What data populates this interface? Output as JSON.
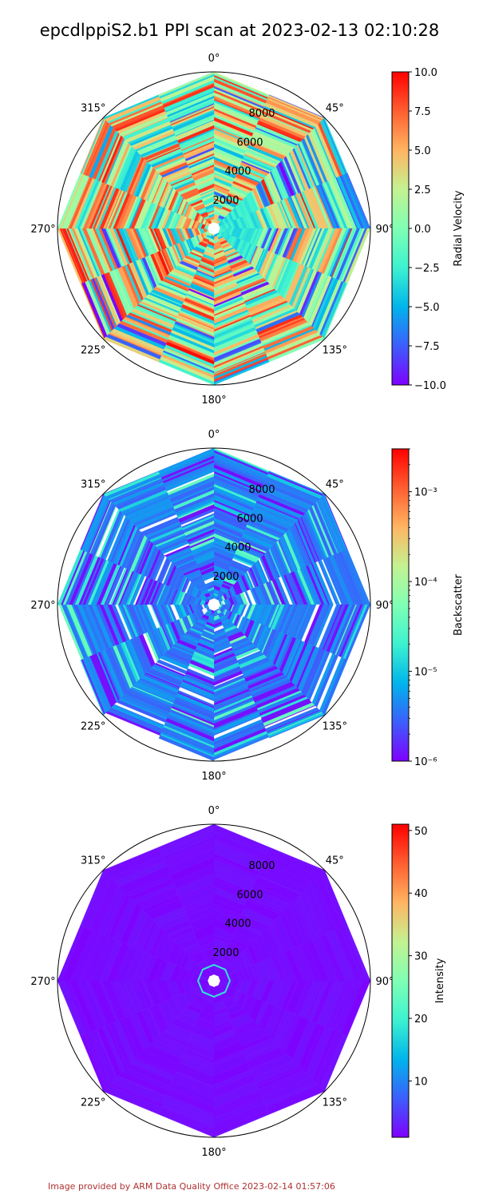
{
  "title": "epcdlppiS2.b1 PPI scan at 2023-02-13 02:10:28",
  "footer": "Image provided by ARM Data Quality Office 2023-02-14 01:57:06",
  "colors": {
    "background": "#ffffff",
    "footer_text": "#b03030",
    "colormap": [
      "#7f00ff",
      "#3c5efc",
      "#00b5eb",
      "#3df2d0",
      "#80ffb4",
      "#c4f291",
      "#ffb562",
      "#ff5e30",
      "#ff0000"
    ]
  },
  "chart_data": [
    {
      "type": "heatmap",
      "projection": "polar",
      "theta_direction": "clockwise",
      "theta_zero": "north",
      "theta_tick_labels": [
        "0°",
        "45°",
        "90°",
        "135°",
        "180°",
        "225°",
        "270°",
        "315°"
      ],
      "r_tick_labels": [
        "2000",
        "4000",
        "6000",
        "8000"
      ],
      "r_ticks": [
        2000,
        4000,
        6000,
        8000
      ],
      "r_range": [
        0,
        10000
      ],
      "colorbar_label": "Radial Velocity",
      "colorbar_scale": "linear",
      "clim": [
        -10,
        10
      ],
      "colorbar_ticks": [
        -10,
        -7.5,
        -5,
        -2.5,
        0,
        2.5,
        5,
        7.5,
        10
      ],
      "colorbar_tick_labels": [
        "−10.0",
        "−7.5",
        "−5.0",
        "−2.5",
        "0.0",
        "2.5",
        "5.0",
        "7.5",
        "10.0"
      ]
    },
    {
      "type": "heatmap",
      "projection": "polar",
      "theta_direction": "clockwise",
      "theta_zero": "north",
      "theta_tick_labels": [
        "0°",
        "45°",
        "90°",
        "135°",
        "180°",
        "225°",
        "270°",
        "315°"
      ],
      "r_tick_labels": [
        "2000",
        "4000",
        "6000",
        "8000"
      ],
      "r_ticks": [
        2000,
        4000,
        6000,
        8000
      ],
      "r_range": [
        0,
        10000
      ],
      "colorbar_label": "Backscatter",
      "colorbar_scale": "log",
      "clim": [
        1e-06,
        0.003
      ],
      "colorbar_ticks": [
        1e-06,
        1e-05,
        0.0001,
        0.001
      ],
      "colorbar_tick_labels": [
        "10⁻⁶",
        "10⁻⁵",
        "10⁻⁴",
        "10⁻³"
      ]
    },
    {
      "type": "heatmap",
      "projection": "polar",
      "theta_direction": "clockwise",
      "theta_zero": "north",
      "theta_tick_labels": [
        "0°",
        "45°",
        "90°",
        "135°",
        "180°",
        "225°",
        "270°",
        "315°"
      ],
      "r_tick_labels": [
        "2000",
        "4000",
        "6000",
        "8000"
      ],
      "r_ticks": [
        2000,
        4000,
        6000,
        8000
      ],
      "r_range": [
        0,
        10000
      ],
      "colorbar_label": "Intensity",
      "colorbar_scale": "linear",
      "clim": [
        1,
        51
      ],
      "colorbar_ticks": [
        10,
        20,
        30,
        40,
        50
      ],
      "colorbar_tick_labels": [
        "10",
        "20",
        "30",
        "40",
        "50"
      ]
    }
  ]
}
